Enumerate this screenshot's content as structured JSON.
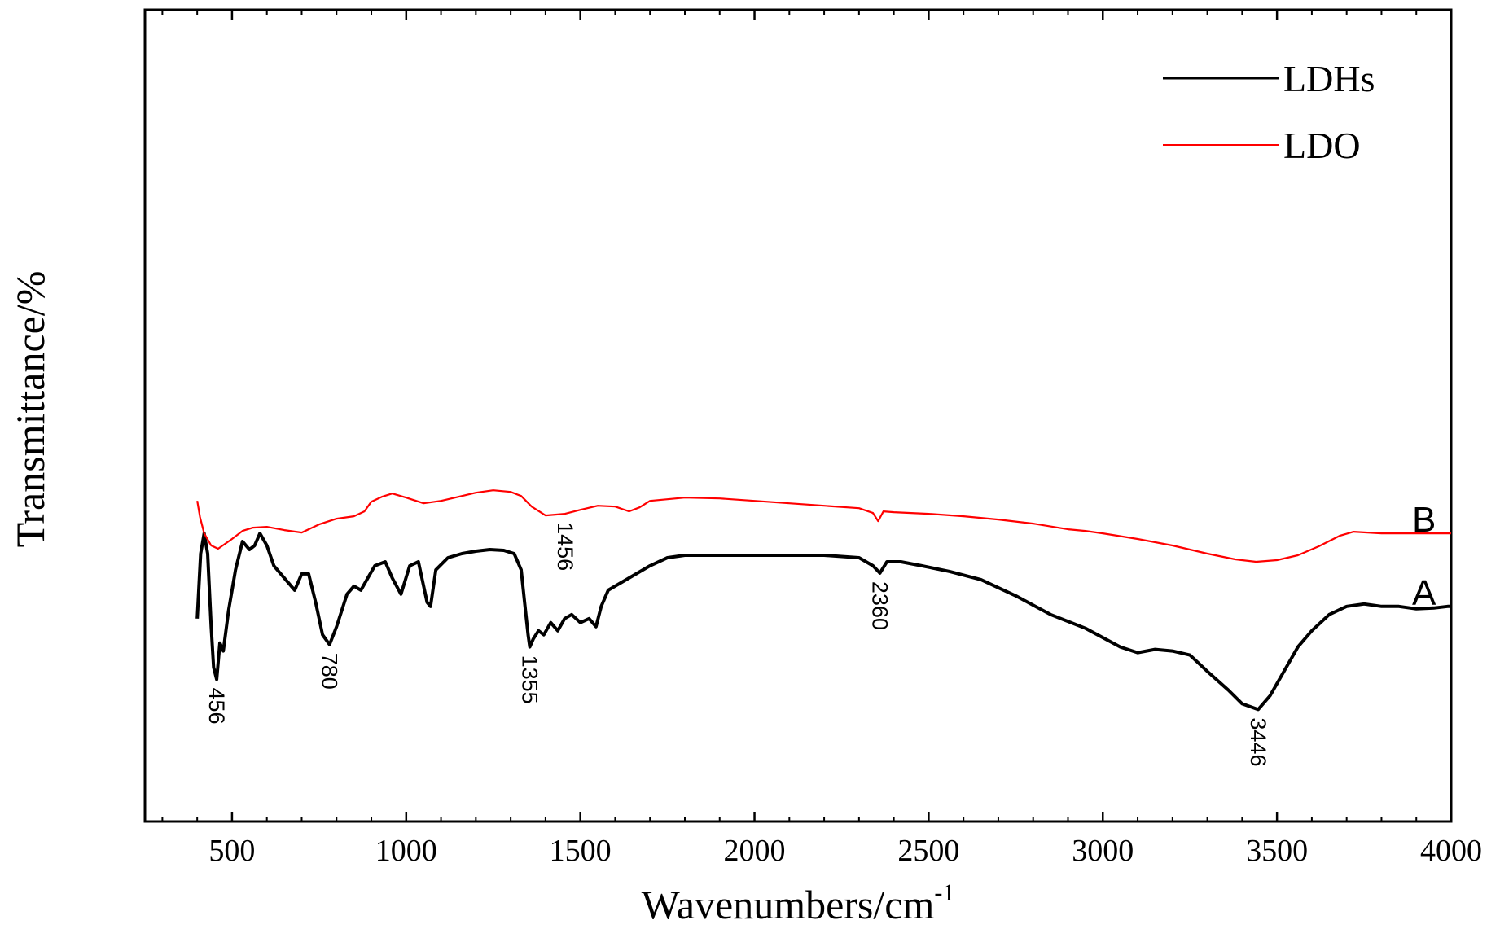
{
  "chart_data": {
    "type": "line",
    "xlabel": "Wavenumbers/cm",
    "xlabel_superscript": "-1",
    "ylabel": "Transmittance/%",
    "xlim": [
      250,
      4000
    ],
    "ylim": [
      0,
      100
    ],
    "x_ticks": [
      500,
      1000,
      1500,
      2000,
      2500,
      3000,
      3500,
      4000
    ],
    "x_tick_labels": [
      "500",
      "1000",
      "1500",
      "2000",
      "2500",
      "3000",
      "3500",
      "4000"
    ],
    "legend_position": "top-right",
    "grid": false,
    "series": [
      {
        "name": "LDHs",
        "curve_label": "A",
        "color": "#000000",
        "points": [
          [
            400,
            25
          ],
          [
            410,
            33
          ],
          [
            420,
            35.5
          ],
          [
            430,
            33
          ],
          [
            440,
            24
          ],
          [
            447,
            19
          ],
          [
            456,
            17.5
          ],
          [
            465,
            22
          ],
          [
            475,
            21
          ],
          [
            490,
            26
          ],
          [
            510,
            31
          ],
          [
            530,
            34.5
          ],
          [
            550,
            33.5
          ],
          [
            565,
            34
          ],
          [
            580,
            35.5
          ],
          [
            600,
            34
          ],
          [
            620,
            31.5
          ],
          [
            650,
            30
          ],
          [
            680,
            28.5
          ],
          [
            700,
            30.5
          ],
          [
            720,
            30.5
          ],
          [
            740,
            27
          ],
          [
            760,
            23
          ],
          [
            780,
            21.8
          ],
          [
            800,
            24
          ],
          [
            830,
            28
          ],
          [
            850,
            29
          ],
          [
            870,
            28.5
          ],
          [
            890,
            30
          ],
          [
            910,
            31.5
          ],
          [
            940,
            32
          ],
          [
            960,
            30
          ],
          [
            985,
            28
          ],
          [
            1010,
            31.5
          ],
          [
            1035,
            32
          ],
          [
            1060,
            27
          ],
          [
            1070,
            26.5
          ],
          [
            1085,
            31
          ],
          [
            1120,
            32.5
          ],
          [
            1160,
            33
          ],
          [
            1200,
            33.3
          ],
          [
            1240,
            33.5
          ],
          [
            1280,
            33.4
          ],
          [
            1310,
            33
          ],
          [
            1330,
            31
          ],
          [
            1340,
            27
          ],
          [
            1350,
            23
          ],
          [
            1355,
            21.5
          ],
          [
            1365,
            22.5
          ],
          [
            1380,
            23.5
          ],
          [
            1395,
            23
          ],
          [
            1415,
            24.5
          ],
          [
            1435,
            23.5
          ],
          [
            1455,
            25
          ],
          [
            1475,
            25.5
          ],
          [
            1500,
            24.5
          ],
          [
            1525,
            25
          ],
          [
            1545,
            24
          ],
          [
            1560,
            26.5
          ],
          [
            1580,
            28.5
          ],
          [
            1620,
            29.5
          ],
          [
            1660,
            30.5
          ],
          [
            1700,
            31.5
          ],
          [
            1750,
            32.5
          ],
          [
            1800,
            32.8
          ],
          [
            1900,
            32.8
          ],
          [
            2000,
            32.8
          ],
          [
            2100,
            32.8
          ],
          [
            2200,
            32.8
          ],
          [
            2300,
            32.5
          ],
          [
            2340,
            31.5
          ],
          [
            2360,
            30.6
          ],
          [
            2380,
            32
          ],
          [
            2420,
            32
          ],
          [
            2480,
            31.5
          ],
          [
            2560,
            30.8
          ],
          [
            2650,
            29.8
          ],
          [
            2750,
            27.8
          ],
          [
            2850,
            25.5
          ],
          [
            2950,
            23.8
          ],
          [
            3050,
            21.5
          ],
          [
            3100,
            20.8
          ],
          [
            3150,
            21.2
          ],
          [
            3200,
            21
          ],
          [
            3250,
            20.5
          ],
          [
            3300,
            18.5
          ],
          [
            3360,
            16.2
          ],
          [
            3400,
            14.5
          ],
          [
            3446,
            13.8
          ],
          [
            3480,
            15.5
          ],
          [
            3520,
            18.5
          ],
          [
            3560,
            21.5
          ],
          [
            3600,
            23.5
          ],
          [
            3650,
            25.5
          ],
          [
            3700,
            26.5
          ],
          [
            3750,
            26.8
          ],
          [
            3800,
            26.5
          ],
          [
            3850,
            26.5
          ],
          [
            3900,
            26.2
          ],
          [
            3950,
            26.3
          ],
          [
            3990,
            26.5
          ],
          [
            3998,
            26.5
          ],
          [
            4000,
            26.5
          ]
        ]
      },
      {
        "name": "LDO",
        "curve_label": "B",
        "color": "#ff0000",
        "points": [
          [
            400,
            39.5
          ],
          [
            408,
            37.5
          ],
          [
            420,
            35.5
          ],
          [
            440,
            34
          ],
          [
            460,
            33.6
          ],
          [
            480,
            34.2
          ],
          [
            500,
            34.8
          ],
          [
            530,
            35.8
          ],
          [
            560,
            36.2
          ],
          [
            600,
            36.3
          ],
          [
            650,
            35.9
          ],
          [
            700,
            35.6
          ],
          [
            750,
            36.6
          ],
          [
            800,
            37.3
          ],
          [
            850,
            37.6
          ],
          [
            880,
            38.2
          ],
          [
            900,
            39.4
          ],
          [
            930,
            40
          ],
          [
            960,
            40.4
          ],
          [
            1000,
            39.9
          ],
          [
            1050,
            39.2
          ],
          [
            1100,
            39.5
          ],
          [
            1150,
            40
          ],
          [
            1200,
            40.5
          ],
          [
            1250,
            40.8
          ],
          [
            1300,
            40.6
          ],
          [
            1330,
            40.1
          ],
          [
            1360,
            38.8
          ],
          [
            1400,
            37.7
          ],
          [
            1456,
            37.9
          ],
          [
            1500,
            38.4
          ],
          [
            1550,
            38.9
          ],
          [
            1600,
            38.8
          ],
          [
            1640,
            38.2
          ],
          [
            1670,
            38.7
          ],
          [
            1700,
            39.5
          ],
          [
            1800,
            39.9
          ],
          [
            1900,
            39.8
          ],
          [
            2000,
            39.5
          ],
          [
            2100,
            39.2
          ],
          [
            2200,
            38.9
          ],
          [
            2300,
            38.6
          ],
          [
            2340,
            38
          ],
          [
            2355,
            37
          ],
          [
            2370,
            38.2
          ],
          [
            2400,
            38.1
          ],
          [
            2500,
            37.9
          ],
          [
            2600,
            37.6
          ],
          [
            2700,
            37.2
          ],
          [
            2800,
            36.7
          ],
          [
            2900,
            36
          ],
          [
            2950,
            35.8
          ],
          [
            3000,
            35.5
          ],
          [
            3100,
            34.8
          ],
          [
            3200,
            34
          ],
          [
            3300,
            33
          ],
          [
            3380,
            32.3
          ],
          [
            3440,
            32
          ],
          [
            3500,
            32.2
          ],
          [
            3560,
            32.8
          ],
          [
            3620,
            33.9
          ],
          [
            3680,
            35.2
          ],
          [
            3720,
            35.7
          ],
          [
            3800,
            35.5
          ],
          [
            3900,
            35.5
          ],
          [
            3995,
            35.5
          ],
          [
            4000,
            35.5
          ]
        ]
      }
    ],
    "peak_labels": [
      {
        "text": "456",
        "x": 456,
        "y": 17.5,
        "series": "LDHs"
      },
      {
        "text": "780",
        "x": 780,
        "y": 21.8,
        "series": "LDHs"
      },
      {
        "text": "1355",
        "x": 1355,
        "y": 21.5,
        "series": "LDHs"
      },
      {
        "text": "2360",
        "x": 2360,
        "y": 30.6,
        "series": "LDHs"
      },
      {
        "text": "3446",
        "x": 3446,
        "y": 13.8,
        "series": "LDHs"
      },
      {
        "text": "1456",
        "x": 1456,
        "y": 37.9,
        "series": "LDO"
      }
    ]
  }
}
